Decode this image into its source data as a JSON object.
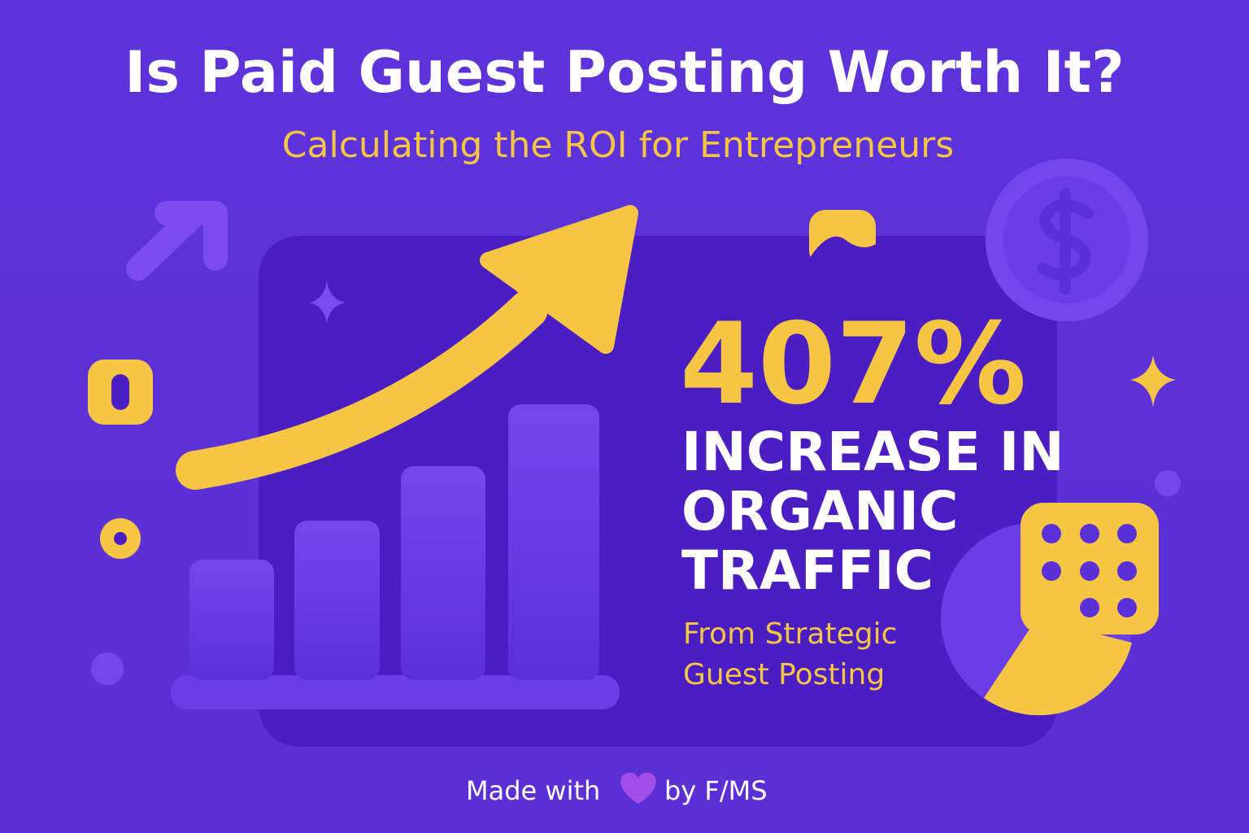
{
  "header": {
    "title": "Is Paid Guest Posting Worth It?",
    "subtitle": "Calculating the ROI for Entrepreneurs"
  },
  "stat": {
    "figure": "407%",
    "label_lines": [
      "INCREASE IN",
      "ORGANIC",
      "TRAFFIC"
    ],
    "source_lines": [
      "From Strategic",
      "Guest Posting"
    ]
  },
  "footer": {
    "prefix": "Made with",
    "suffix": "by F/MS"
  }
}
